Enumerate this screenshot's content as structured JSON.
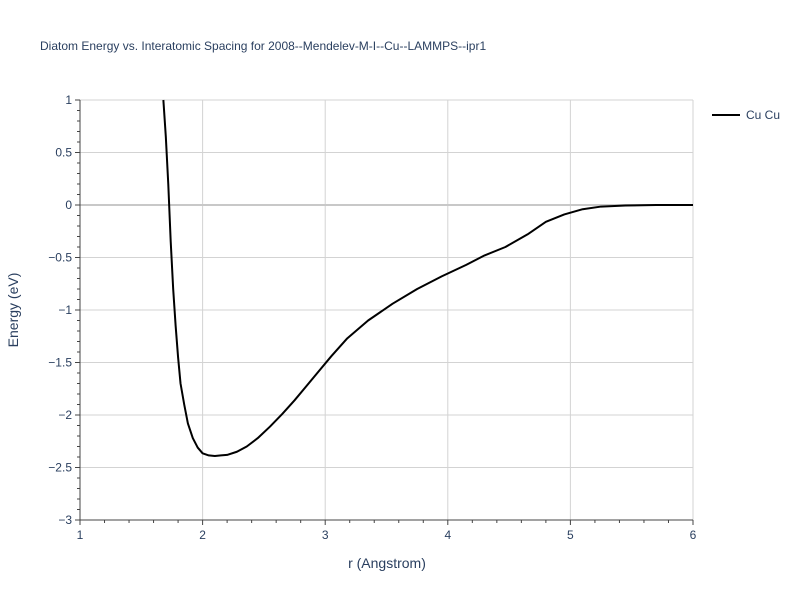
{
  "chart_data": {
    "type": "line",
    "title": "Diatom Energy vs. Interatomic Spacing for 2008--Mendelev-M-I--Cu--LAMMPS--ipr1",
    "xlabel": "r (Angstrom)",
    "ylabel": "Energy (eV)",
    "xlim": [
      1,
      6
    ],
    "ylim": [
      -3,
      1
    ],
    "xticks": [
      1,
      2,
      3,
      4,
      5,
      6
    ],
    "xtick_labels": [
      "1",
      "2",
      "3",
      "4",
      "5",
      "6"
    ],
    "yticks": [
      1,
      0.5,
      0,
      -0.5,
      -1,
      -1.5,
      -2,
      -2.5,
      -3
    ],
    "ytick_labels": [
      "1",
      "0.5",
      "0",
      "−0.5",
      "−1",
      "−1.5",
      "−2",
      "−2.5",
      "−3"
    ],
    "grid": true,
    "legend_position": "top-right",
    "colors": {
      "line": "#000000",
      "grid": "#d3d3d3",
      "zero_line": "#c8c8c8",
      "axis": "#444444",
      "text": "#2a3f5f"
    },
    "series": [
      {
        "name": "Cu Cu",
        "x": [
          1.68,
          1.7,
          1.72,
          1.74,
          1.76,
          1.78,
          1.8,
          1.82,
          1.85,
          1.88,
          1.92,
          1.96,
          2.0,
          2.05,
          2.1,
          2.15,
          2.2,
          2.28,
          2.36,
          2.45,
          2.55,
          2.65,
          2.75,
          2.85,
          2.95,
          3.05,
          3.18,
          3.35,
          3.55,
          3.75,
          3.95,
          4.15,
          4.3,
          4.47,
          4.65,
          4.8,
          4.95,
          5.1,
          5.25,
          5.45,
          5.7,
          6.0
        ],
        "y": [
          1.0,
          0.65,
          0.2,
          -0.35,
          -0.8,
          -1.15,
          -1.45,
          -1.7,
          -1.9,
          -2.08,
          -2.22,
          -2.31,
          -2.365,
          -2.385,
          -2.39,
          -2.385,
          -2.38,
          -2.35,
          -2.3,
          -2.22,
          -2.11,
          -1.99,
          -1.86,
          -1.72,
          -1.58,
          -1.44,
          -1.27,
          -1.1,
          -0.94,
          -0.8,
          -0.68,
          -0.57,
          -0.48,
          -0.4,
          -0.28,
          -0.16,
          -0.09,
          -0.04,
          -0.015,
          -0.005,
          0.0,
          0.0
        ]
      }
    ]
  }
}
